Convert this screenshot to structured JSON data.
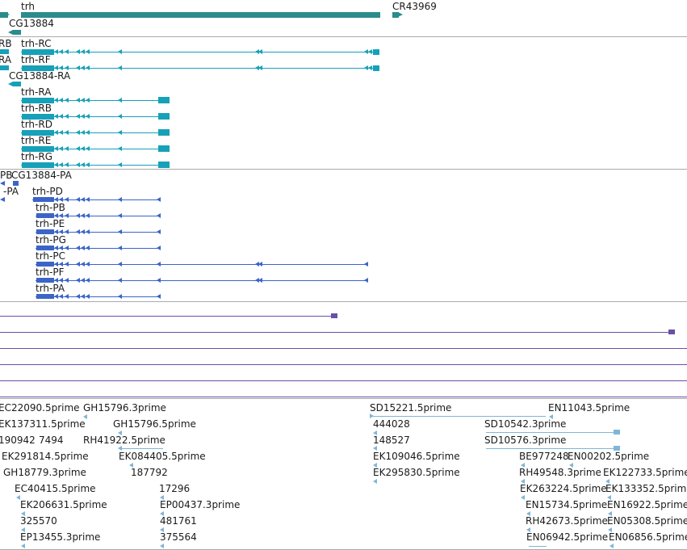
{
  "colors": {
    "gene": "#2b8c8c",
    "transcript_fly": "#16a1b8",
    "protein": "#3a64c8",
    "purple": "#6a4fa8",
    "est": "#7fb6d6",
    "divider": "#aaaaaa"
  },
  "gene_track": {
    "genes": [
      "trh",
      "CR43969",
      "CG13884"
    ]
  },
  "transcript_track": {
    "partial_left": [
      "RB",
      "RA"
    ],
    "rows": [
      "trh-RC",
      "trh-RF",
      "CG13884-RA",
      "trh-RA",
      "trh-RB",
      "trh-RD",
      "trh-RE",
      "trh-RG"
    ]
  },
  "protein_track": {
    "top_labels": [
      "PB",
      "CG13884-PA",
      "-PA"
    ],
    "rows": [
      "trh-PD",
      "trh-PB",
      "trh-PE",
      "trh-PG",
      "trh-PC",
      "trh-PF",
      "trh-PA"
    ]
  },
  "est_track": {
    "labels": [
      "EC22090.5prime",
      "GH15796.3prime",
      "SD15221.5prime",
      "EN11043.5prime",
      "EK137311.5prime",
      "GH15796.5prime",
      "444028",
      "SD10542.3prime",
      "190942",
      "7494",
      "RH41922.5prime",
      "148527",
      "SD10576.3prime",
      "EK291814.5prime",
      "EK084405.5prime",
      "EK109046.5prime",
      "BE977248",
      "EN00202.5prime",
      "GH18779.3prime",
      "187792",
      "EK295830.5prime",
      "RH49548.3prime",
      "EK122733.5prime",
      "EC40415.5prime",
      "17296",
      "EK263224.5prime",
      "EK133352.5prime",
      "EK206631.5prime",
      "EP00437.3prime",
      "EN15734.5prime",
      "EN16922.5prime",
      "325570",
      "481761",
      "RH42673.5prime",
      "EN05308.5prime",
      "EP13455.3prime",
      "375564",
      "EN06942.5prime",
      "EN06856.5prime"
    ]
  }
}
